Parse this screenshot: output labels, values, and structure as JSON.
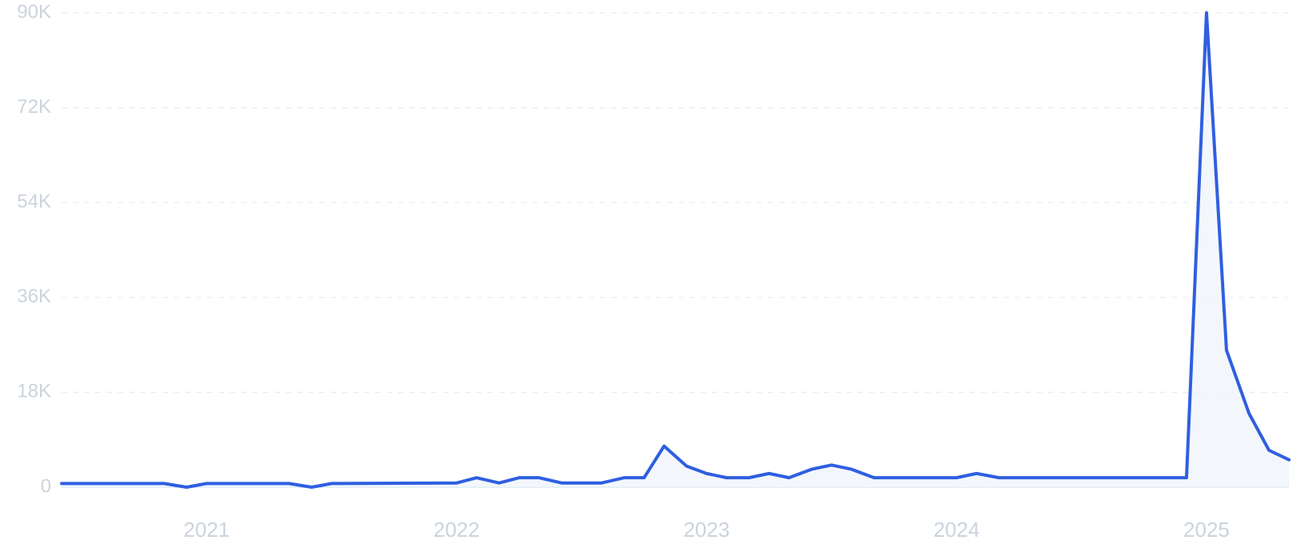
{
  "chart_data": {
    "type": "line",
    "title": "",
    "xlabel": "",
    "ylabel": "",
    "x_start": "2020-06",
    "x_end": "2025-05",
    "xlim": [
      2020.42,
      2025.33
    ],
    "ylim": [
      0,
      90000
    ],
    "y_ticks": [
      0,
      18000,
      36000,
      54000,
      72000,
      90000
    ],
    "y_tick_labels": [
      "0",
      "18K",
      "36K",
      "54K",
      "72K",
      "90K"
    ],
    "x_ticks": [
      2021,
      2022,
      2023,
      2024,
      2025
    ],
    "x_tick_labels": [
      "2021",
      "2022",
      "2023",
      "2024",
      "2025"
    ],
    "grid": "horizontal-dashed",
    "legend": "none",
    "series": [
      {
        "color": "#2f5fe0",
        "fill": "#eef4fb",
        "points": [
          [
            2020.42,
            700
          ],
          [
            2020.75,
            700
          ],
          [
            2020.83,
            700
          ],
          [
            2020.92,
            0
          ],
          [
            2021.0,
            700
          ],
          [
            2021.33,
            700
          ],
          [
            2021.42,
            0
          ],
          [
            2021.5,
            700
          ],
          [
            2022.0,
            800
          ],
          [
            2022.08,
            1800
          ],
          [
            2022.17,
            800
          ],
          [
            2022.25,
            1800
          ],
          [
            2022.33,
            1800
          ],
          [
            2022.42,
            800
          ],
          [
            2022.58,
            800
          ],
          [
            2022.67,
            1800
          ],
          [
            2022.75,
            1800
          ],
          [
            2022.83,
            7800
          ],
          [
            2022.92,
            4000
          ],
          [
            2023.0,
            2600
          ],
          [
            2023.08,
            1800
          ],
          [
            2023.17,
            1800
          ],
          [
            2023.25,
            2600
          ],
          [
            2023.33,
            1800
          ],
          [
            2023.42,
            3400
          ],
          [
            2023.5,
            4200
          ],
          [
            2023.58,
            3400
          ],
          [
            2023.67,
            1800
          ],
          [
            2024.0,
            1800
          ],
          [
            2024.08,
            2600
          ],
          [
            2024.17,
            1800
          ],
          [
            2024.83,
            1800
          ],
          [
            2024.92,
            1800
          ],
          [
            2025.0,
            90000
          ],
          [
            2025.08,
            26000
          ],
          [
            2025.17,
            14000
          ],
          [
            2025.25,
            7000
          ],
          [
            2025.33,
            5200
          ]
        ]
      }
    ]
  }
}
